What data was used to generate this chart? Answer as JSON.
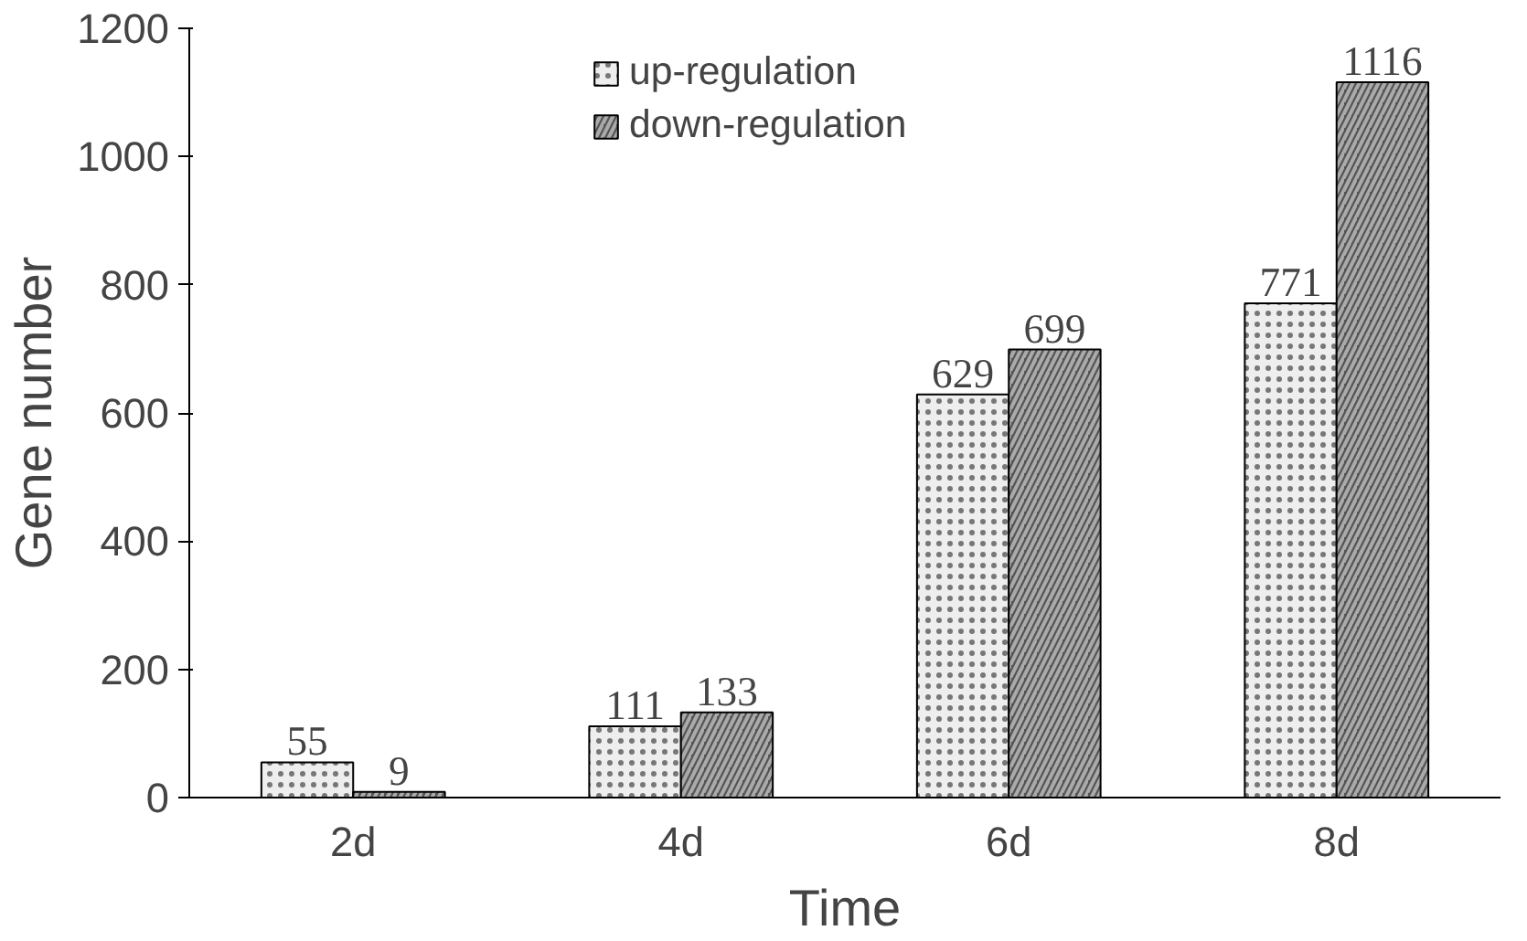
{
  "chart_data": {
    "type": "bar",
    "xlabel": "Time",
    "ylabel": "Gene number",
    "categories": [
      "2d",
      "4d",
      "6d",
      "8d"
    ],
    "series": [
      {
        "name": "up-regulation",
        "color": "#eeeeee",
        "values": [
          55,
          111,
          629,
          771
        ]
      },
      {
        "name": "down-regulation",
        "color": "#555555",
        "values": [
          9,
          133,
          699,
          1116
        ]
      }
    ],
    "ylim": [
      0,
      1200
    ],
    "yticks": [
      0,
      200,
      400,
      600,
      800,
      1000,
      1200
    ],
    "grid": false,
    "legend": "top left",
    "data_labels": true
  }
}
